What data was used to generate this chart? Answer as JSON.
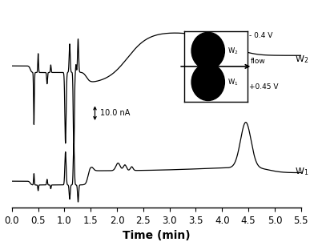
{
  "title": "",
  "xlabel": "Time (min)",
  "ylabel": "",
  "xlim": [
    0.0,
    5.5
  ],
  "xlabel_fontsize": 10,
  "tick_fontsize": 8.5,
  "background_color": "#ffffff",
  "line_color": "#000000",
  "scale_bar_text": "10.0 nA",
  "w2_label": "W$_2$",
  "w1_label": "W$_1$",
  "inset_voltage_top": "- 0.4 V",
  "inset_voltage_bottom": "+0.45 V",
  "inset_flow_label": "flow"
}
